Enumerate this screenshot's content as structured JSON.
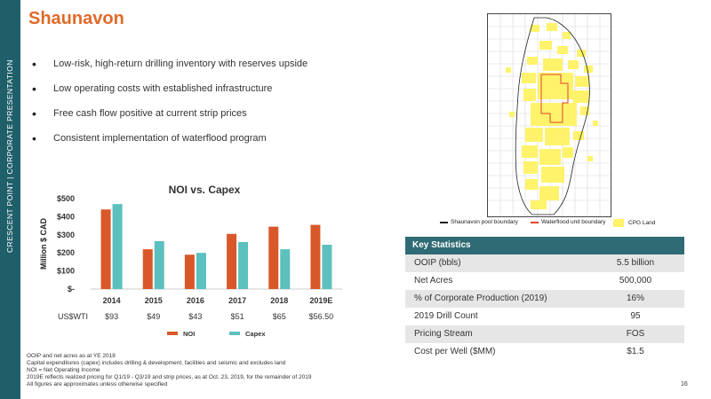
{
  "sidebar": {
    "text": "CRESCENT POINT  |  CORPORATE PRESENTATION"
  },
  "title": "Shaunavon",
  "bullets": [
    "Low-risk, high-return drilling inventory with reserves upside",
    "Low operating costs with established infrastructure",
    "Free cash flow positive at current strip prices",
    "Consistent implementation of waterflood program"
  ],
  "chart_data": {
    "type": "bar",
    "title": "NOI vs. Capex",
    "ylabel": "Million $ CAD",
    "xlabel": "",
    "categories": [
      "2014",
      "2015",
      "2016",
      "2017",
      "2018",
      "2019E"
    ],
    "row_label": "US$WTI",
    "row_values": [
      "$93",
      "$49",
      "$43",
      "$51",
      "$65",
      "$56.50"
    ],
    "series": [
      {
        "name": "NOI",
        "values": [
          440,
          220,
          190,
          305,
          345,
          355
        ],
        "color": "#d9582a"
      },
      {
        "name": "Capex",
        "values": [
          470,
          265,
          200,
          260,
          220,
          245
        ],
        "color": "#5cc0be"
      }
    ],
    "ylim": [
      0,
      500
    ],
    "yticks": [
      0,
      100,
      200,
      300,
      400,
      500
    ],
    "ytick_labels": [
      "$-",
      "$100",
      "$200",
      "$300",
      "$400",
      "$500"
    ],
    "legend": "bottom",
    "grid": false
  },
  "map": {
    "legend": [
      {
        "label": "Shaunavon pool boundary",
        "icon": "line-icon",
        "color": "#222222"
      },
      {
        "label": "Waterflood unit boundary",
        "icon": "line-icon",
        "color": "#e0452a"
      },
      {
        "label": "CPG Land",
        "icon": "square-icon",
        "color": "#fff36b"
      }
    ]
  },
  "key_stats": {
    "header": "Key Statistics",
    "rows": [
      {
        "label": "OOIP (bbls)",
        "value": "5.5 billion"
      },
      {
        "label": "Net Acres",
        "value": "500,000"
      },
      {
        "label": "% of Corporate Production (2019)",
        "value": "16%"
      },
      {
        "label": "2019 Drill Count",
        "value": "95"
      },
      {
        "label": "Pricing Stream",
        "value": "FOS"
      },
      {
        "label": "Cost per Well ($MM)",
        "value": "$1.5"
      }
    ]
  },
  "notes": [
    "OOIP and net acres as at YE 2018",
    "Capital expenditures (capex) includes drilling & development, facilities and seismic and excludes land",
    "NOI = Net Operating Income",
    "2019E reflects realized pricing for Q1/19 - Q3/19 and strip prices, as at Oct. 23, 2019, for the remainder of 2019",
    "All figures are approximates unless otherwise specified"
  ],
  "page_number": "16"
}
